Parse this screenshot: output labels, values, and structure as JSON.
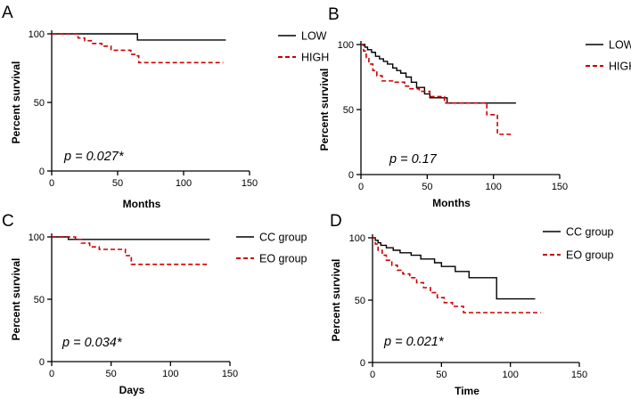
{
  "chart_data": [
    {
      "type": "line",
      "panel": "A",
      "xlabel": "Months",
      "ylabel": "Percent survival",
      "xlim": [
        0,
        150
      ],
      "ylim": [
        0,
        100
      ],
      "xticks": [
        0,
        50,
        100,
        150
      ],
      "yticks": [
        0,
        50,
        100
      ],
      "annotation": "p = 0.027*",
      "series": [
        {
          "name": "LOW",
          "color": "#000000",
          "style": "solid",
          "x": [
            0,
            65,
            65,
            132
          ],
          "y": [
            100,
            100,
            95.5,
            95.5
          ]
        },
        {
          "name": "HIGH",
          "color": "#cc0000",
          "style": "dashed",
          "x": [
            0,
            20,
            25,
            30,
            38,
            45,
            58,
            60,
            63,
            66,
            80,
            100,
            130
          ],
          "y": [
            100,
            97,
            95,
            93,
            91,
            88,
            88,
            85,
            84,
            79,
            79,
            79,
            79
          ]
        }
      ]
    },
    {
      "type": "line",
      "panel": "B",
      "xlabel": "Months",
      "ylabel": "Percent survival",
      "xlim": [
        0,
        150
      ],
      "ylim": [
        0,
        100
      ],
      "xticks": [
        0,
        50,
        100,
        150
      ],
      "yticks": [
        0,
        50,
        100
      ],
      "annotation": "p = 0.17",
      "series": [
        {
          "name": "LOW",
          "color": "#000000",
          "style": "solid",
          "x": [
            0,
            3,
            5,
            8,
            11,
            14,
            17,
            20,
            24,
            27,
            30,
            34,
            38,
            42,
            48,
            52,
            65,
            80,
            100,
            117
          ],
          "y": [
            100,
            98,
            96,
            94,
            91,
            89,
            87,
            85,
            82,
            80,
            78,
            75,
            71,
            67,
            62,
            59,
            55,
            55,
            55,
            55
          ]
        },
        {
          "name": "HIGH",
          "color": "#cc0000",
          "style": "dashed",
          "x": [
            0,
            2,
            4,
            6,
            9,
            12,
            16,
            25,
            33,
            37,
            44,
            52,
            60,
            63,
            90,
            95,
            103,
            115
          ],
          "y": [
            100,
            95,
            90,
            85,
            80,
            76,
            72,
            71,
            68,
            66,
            64,
            60,
            60,
            55,
            55,
            46,
            31,
            31
          ]
        }
      ]
    },
    {
      "type": "line",
      "panel": "C",
      "xlabel": "Days",
      "ylabel": "Percent survival",
      "xlim": [
        0,
        150
      ],
      "ylim": [
        0,
        100
      ],
      "xticks": [
        0,
        50,
        100,
        150
      ],
      "yticks": [
        0,
        50,
        100
      ],
      "annotation": "p = 0.034*",
      "series": [
        {
          "name": "CC group",
          "color": "#000000",
          "style": "solid",
          "x": [
            0,
            14,
            14,
            133
          ],
          "y": [
            100,
            100,
            98,
            98
          ]
        },
        {
          "name": "EO group",
          "color": "#cc0000",
          "style": "dashed",
          "x": [
            0,
            15,
            20,
            25,
            32,
            40,
            45,
            62,
            67,
            75,
            100,
            132
          ],
          "y": [
            100,
            100,
            98,
            95,
            92,
            90,
            90,
            85,
            78,
            78,
            78,
            78
          ]
        }
      ]
    },
    {
      "type": "line",
      "panel": "D",
      "xlabel": "Time",
      "ylabel": "Percent survival",
      "xlim": [
        0,
        150
      ],
      "ylim": [
        0,
        100
      ],
      "xticks": [
        0,
        50,
        100,
        150
      ],
      "yticks": [
        0,
        50,
        100
      ],
      "annotation": "p = 0.021*",
      "series": [
        {
          "name": "CC group",
          "color": "#000000",
          "style": "solid",
          "x": [
            0,
            2,
            4,
            6,
            10,
            15,
            20,
            28,
            35,
            45,
            50,
            60,
            70,
            85,
            90,
            90,
            100,
            118
          ],
          "y": [
            100,
            98,
            96,
            94,
            92,
            90,
            88,
            86,
            83,
            80,
            77,
            73,
            68,
            68,
            60,
            51,
            51,
            51
          ]
        },
        {
          "name": "EO group",
          "color": "#cc0000",
          "style": "dashed",
          "x": [
            0,
            2,
            4,
            7,
            10,
            14,
            18,
            22,
            27,
            32,
            37,
            42,
            47,
            52,
            58,
            66,
            80,
            100,
            122
          ],
          "y": [
            100,
            95,
            90,
            86,
            82,
            78,
            74,
            71,
            68,
            64,
            60,
            56,
            52,
            48,
            45,
            40,
            40,
            40,
            40
          ]
        }
      ]
    }
  ]
}
